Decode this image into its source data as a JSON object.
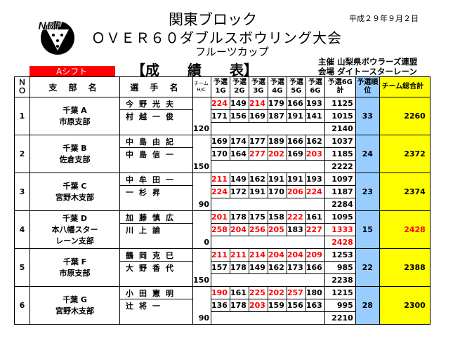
{
  "header": {
    "title_line1": "関東ブロック",
    "title_line2": "ＯＶＥＲ６０ダブルスボウリング大会",
    "title_line3": "フルーツカップ",
    "date": "平成２９年９月２日",
    "logo": "NBF",
    "organizer": "主催 山梨県ボウラーズ連盟",
    "venue": "会場 ダイトースターレーン",
    "class_label": "Aシフト",
    "results_title": "【成　　績　　表】"
  },
  "columns": {
    "no": "ＮＯ",
    "branch": "支 部 名",
    "player": "選 手 名",
    "hc_label": "チーム",
    "hc_sub": "H/C",
    "g1": "予選1G",
    "g2": "予選2G",
    "g3": "予選3G",
    "g4": "予選4G",
    "g5": "予選5G",
    "g6": "予選6G",
    "g6total": "予選6G計",
    "qual_rank": "予選順位",
    "team_total": "チーム総合計"
  },
  "teams": [
    {
      "no": "1",
      "branch": "千葉 A",
      "branch2": "市原支部",
      "branch3": "",
      "p1": "今野光夫",
      "p2": "村越一俊",
      "hc": "120",
      "s1": [
        "224",
        "149",
        "214",
        "179",
        "166",
        "193"
      ],
      "t1": "1125",
      "r1": [
        true,
        false,
        true,
        false,
        false,
        false
      ],
      "s2": [
        "171",
        "156",
        "169",
        "187",
        "191",
        "141"
      ],
      "t2": "1015",
      "r2": [
        false,
        false,
        false,
        false,
        false,
        false
      ],
      "sum": "2140",
      "rank": "33",
      "total": "2260",
      "total_red": false
    },
    {
      "no": "2",
      "branch": "千葉 B",
      "branch2": "佐倉支部",
      "branch3": "",
      "p1": "中島由記",
      "p2": "中島信一",
      "hc": "150",
      "s1": [
        "169",
        "174",
        "177",
        "189",
        "166",
        "162"
      ],
      "t1": "1037",
      "r1": [
        false,
        false,
        false,
        false,
        false,
        false
      ],
      "s2": [
        "170",
        "164",
        "277",
        "202",
        "169",
        "203"
      ],
      "t2": "1185",
      "r2": [
        false,
        false,
        true,
        true,
        false,
        true
      ],
      "sum": "2222",
      "rank": "24",
      "total": "2372",
      "total_red": false
    },
    {
      "no": "3",
      "branch": "千葉 C",
      "branch2": "宮野木支部",
      "branch3": "",
      "p1": "中牟田一",
      "p2": "一杉昇",
      "hc": "90",
      "s1": [
        "211",
        "149",
        "162",
        "191",
        "191",
        "193"
      ],
      "t1": "1097",
      "r1": [
        true,
        false,
        false,
        false,
        false,
        false
      ],
      "s2": [
        "224",
        "172",
        "191",
        "170",
        "206",
        "224"
      ],
      "t2": "1187",
      "r2": [
        true,
        false,
        false,
        false,
        true,
        true
      ],
      "sum": "2284",
      "rank": "23",
      "total": "2374",
      "total_red": false
    },
    {
      "no": "4",
      "branch": "千葉 D",
      "branch2": "本八幡スター",
      "branch3": "レーン支部",
      "p1": "加藤慎広",
      "p2": "川上諭",
      "hc": "0",
      "s1": [
        "201",
        "178",
        "175",
        "158",
        "222",
        "161"
      ],
      "t1": "1095",
      "r1": [
        true,
        false,
        false,
        false,
        true,
        false
      ],
      "s2": [
        "258",
        "204",
        "256",
        "205",
        "183",
        "227"
      ],
      "t2": "1333",
      "r2": [
        true,
        true,
        true,
        true,
        false,
        true
      ],
      "sum": "2428",
      "rank": "15",
      "total": "2428",
      "total_red": true
    },
    {
      "no": "5",
      "branch": "千葉 F",
      "branch2": "市原支部",
      "branch3": "",
      "p1": "鶴岡克巳",
      "p2": "大野香代",
      "hc": "150",
      "s1": [
        "211",
        "211",
        "214",
        "204",
        "204",
        "209"
      ],
      "t1": "1253",
      "r1": [
        true,
        true,
        true,
        true,
        true,
        true
      ],
      "s2": [
        "157",
        "178",
        "149",
        "162",
        "173",
        "166"
      ],
      "t2": "985",
      "r2": [
        false,
        false,
        false,
        false,
        false,
        false
      ],
      "sum": "2238",
      "rank": "22",
      "total": "2388",
      "total_red": false
    },
    {
      "no": "6",
      "branch": "千葉 G",
      "branch2": "宮野木支部",
      "branch3": "",
      "p1": "小田憲明",
      "p2": "辻将一",
      "hc": "90",
      "s1": [
        "190",
        "161",
        "225",
        "202",
        "257",
        "180"
      ],
      "t1": "1215",
      "r1": [
        true,
        false,
        true,
        true,
        true,
        false
      ],
      "s2": [
        "136",
        "178",
        "203",
        "159",
        "156",
        "163"
      ],
      "t2": "995",
      "r2": [
        false,
        false,
        true,
        false,
        false,
        false
      ],
      "sum": "2210",
      "rank": "28",
      "total": "2300",
      "total_red": false
    }
  ]
}
